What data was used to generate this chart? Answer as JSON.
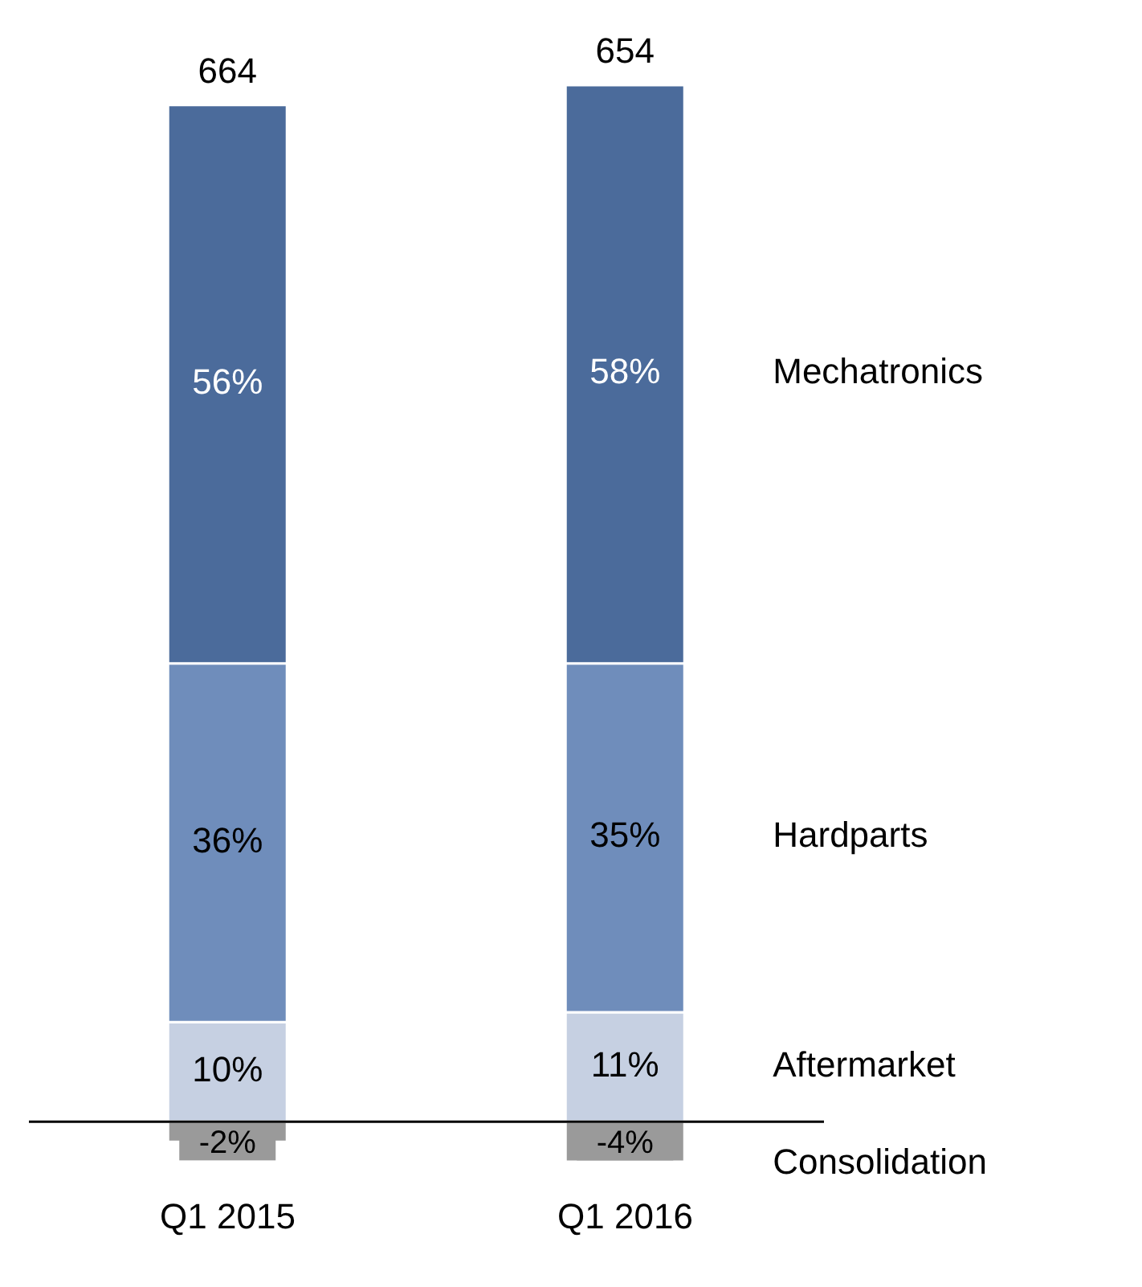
{
  "chart_data": {
    "type": "bar",
    "stacked": true,
    "categories": [
      "Q1 2015",
      "Q1 2016"
    ],
    "series": [
      {
        "name": "Aftermarket",
        "color": "#c6d0e2",
        "values": [
          10,
          11
        ],
        "value_labels": [
          "10%",
          "11%"
        ]
      },
      {
        "name": "Hardparts",
        "color": "#6f8dbb",
        "values": [
          36,
          35
        ],
        "value_labels": [
          "36%",
          "35%"
        ]
      },
      {
        "name": "Mechatronics",
        "color": "#4b6b9b",
        "values": [
          56,
          58
        ],
        "value_labels": [
          "56%",
          "58%"
        ]
      },
      {
        "name": "Consolidation",
        "color": "#9a9a9a",
        "values": [
          -2,
          -4
        ],
        "value_labels": [
          "-2%",
          "-4%"
        ]
      }
    ],
    "annotations": [
      "664",
      "654"
    ],
    "legend": false,
    "grid": false
  }
}
